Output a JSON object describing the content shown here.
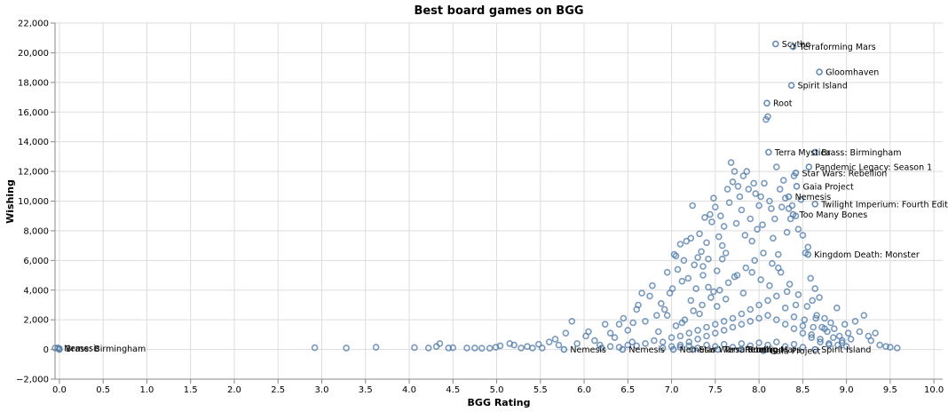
{
  "chart_data": {
    "type": "scatter",
    "title": "Best board games on BGG",
    "xlabel": "BGG Rating",
    "ylabel": "Wishing",
    "xlim": [
      -0.05,
      10.1
    ],
    "ylim": [
      -2000,
      22000
    ],
    "x_ticks": [
      "0.0",
      "0.5",
      "1.0",
      "1.5",
      "2.0",
      "2.5",
      "3.0",
      "3.5",
      "4.0",
      "4.5",
      "5.0",
      "5.5",
      "6.0",
      "6.5",
      "7.0",
      "7.5",
      "8.0",
      "8.5",
      "9.0",
      "9.5",
      "10.0"
    ],
    "y_ticks": [
      "−2,000",
      "0",
      "2,000",
      "4,000",
      "6,000",
      "8,000",
      "10,000",
      "12,000",
      "14,000",
      "16,000",
      "18,000",
      "20,000",
      "22,000"
    ],
    "grid": true,
    "color": "#4c78a8",
    "labeled_points": [
      {
        "label": "Scythe",
        "x": 8.19,
        "y": 20600
      },
      {
        "label": "Terraforming Mars",
        "x": 8.39,
        "y": 20400
      },
      {
        "label": "Gloomhaven",
        "x": 8.69,
        "y": 18700
      },
      {
        "label": "Spirit Island",
        "x": 8.37,
        "y": 17800
      },
      {
        "label": "Root",
        "x": 8.09,
        "y": 16600
      },
      {
        "label": "Terra Mystica",
        "x": 8.11,
        "y": 13300
      },
      {
        "label": "Brass: Birmingham",
        "x": 8.64,
        "y": 13300
      },
      {
        "label": "Pandemic Legacy: Season 1",
        "x": 8.57,
        "y": 12300
      },
      {
        "label": "Star Wars: Rebellion",
        "x": 8.42,
        "y": 11900
      },
      {
        "label": "Gaia Project",
        "x": 8.43,
        "y": 11000
      },
      {
        "label": "Nemesis",
        "x": 8.34,
        "y": 10300
      },
      {
        "label": "Twilight Imperium: Fourth Edition",
        "x": 8.64,
        "y": 9800
      },
      {
        "label": "Too Many Bones",
        "x": 8.39,
        "y": 9100
      },
      {
        "label": "Kingdom Death: Monster",
        "x": 8.56,
        "y": 6400
      },
      {
        "label": "Nemesis",
        "x": -0.02,
        "y": 100
      },
      {
        "label": "Brass: Birmingham",
        "x": 0.0,
        "y": 50
      },
      {
        "label": "Nemesis",
        "x": 5.77,
        "y": 0
      },
      {
        "label": "Nemesis",
        "x": 6.44,
        "y": 0
      },
      {
        "label": "Nemesis",
        "x": 7.02,
        "y": 0
      },
      {
        "label": "Star Wars: Rebellion",
        "x": 7.24,
        "y": 0
      },
      {
        "label": "Terraforming Mars",
        "x": 7.53,
        "y": 0
      },
      {
        "label": "Root",
        "x": 7.8,
        "y": 0
      },
      {
        "label": "Gaia Project",
        "x": 8.05,
        "y": -80
      },
      {
        "label": "Spirit Island",
        "x": 8.64,
        "y": 0
      }
    ],
    "points": [
      [
        -0.05,
        100
      ],
      [
        0.0,
        0
      ],
      [
        2.92,
        120
      ],
      [
        3.28,
        100
      ],
      [
        3.62,
        150
      ],
      [
        4.06,
        130
      ],
      [
        4.22,
        100
      ],
      [
        4.31,
        200
      ],
      [
        4.35,
        400
      ],
      [
        4.45,
        100
      ],
      [
        4.5,
        120
      ],
      [
        4.66,
        100
      ],
      [
        4.75,
        100
      ],
      [
        4.83,
        80
      ],
      [
        4.92,
        80
      ],
      [
        4.99,
        150
      ],
      [
        5.04,
        250
      ],
      [
        5.15,
        400
      ],
      [
        5.2,
        300
      ],
      [
        5.28,
        100
      ],
      [
        5.35,
        200
      ],
      [
        5.41,
        100
      ],
      [
        5.48,
        350
      ],
      [
        5.52,
        100
      ],
      [
        5.6,
        500
      ],
      [
        5.67,
        700
      ],
      [
        5.71,
        300
      ],
      [
        5.79,
        1100
      ],
      [
        5.86,
        1900
      ],
      [
        5.92,
        400
      ],
      [
        6.02,
        900
      ],
      [
        6.05,
        1200
      ],
      [
        6.12,
        600
      ],
      [
        6.18,
        300
      ],
      [
        6.24,
        1700
      ],
      [
        6.3,
        1100
      ],
      [
        6.35,
        800
      ],
      [
        6.4,
        1700
      ],
      [
        6.45,
        2100
      ],
      [
        6.5,
        1300
      ],
      [
        6.56,
        1800
      ],
      [
        6.6,
        2700
      ],
      [
        6.62,
        3000
      ],
      [
        6.66,
        3800
      ],
      [
        6.7,
        1900
      ],
      [
        6.75,
        3600
      ],
      [
        6.78,
        4300
      ],
      [
        6.83,
        2300
      ],
      [
        6.88,
        3100
      ],
      [
        6.92,
        2700
      ],
      [
        6.95,
        5200
      ],
      [
        6.98,
        3800
      ],
      [
        7.01,
        4100
      ],
      [
        7.03,
        6400
      ],
      [
        7.05,
        6300
      ],
      [
        7.07,
        5400
      ],
      [
        7.1,
        7100
      ],
      [
        7.12,
        4600
      ],
      [
        7.14,
        6000
      ],
      [
        7.17,
        7300
      ],
      [
        7.19,
        4800
      ],
      [
        7.22,
        7500
      ],
      [
        7.24,
        9700
      ],
      [
        7.26,
        5700
      ],
      [
        7.28,
        4100
      ],
      [
        7.3,
        6200
      ],
      [
        7.32,
        7800
      ],
      [
        7.34,
        6600
      ],
      [
        7.36,
        5000
      ],
      [
        7.38,
        8900
      ],
      [
        7.4,
        7200
      ],
      [
        7.42,
        6100
      ],
      [
        7.44,
        9100
      ],
      [
        7.46,
        8600
      ],
      [
        7.48,
        10200
      ],
      [
        7.5,
        9600
      ],
      [
        7.52,
        5300
      ],
      [
        7.54,
        7600
      ],
      [
        7.56,
        9000
      ],
      [
        7.58,
        7000
      ],
      [
        7.6,
        8300
      ],
      [
        7.62,
        6500
      ],
      [
        7.64,
        10800
      ],
      [
        7.66,
        9900
      ],
      [
        7.68,
        12600
      ],
      [
        7.7,
        11300
      ],
      [
        7.72,
        12000
      ],
      [
        7.74,
        8500
      ],
      [
        7.76,
        11000
      ],
      [
        7.78,
        10300
      ],
      [
        7.8,
        9400
      ],
      [
        7.82,
        11700
      ],
      [
        7.84,
        7700
      ],
      [
        7.86,
        12000
      ],
      [
        7.88,
        10800
      ],
      [
        7.9,
        8800
      ],
      [
        7.92,
        7300
      ],
      [
        7.94,
        11200
      ],
      [
        7.96,
        10500
      ],
      [
        7.98,
        8100
      ],
      [
        8.0,
        9700
      ],
      [
        8.02,
        10300
      ],
      [
        8.04,
        8400
      ],
      [
        8.06,
        11200
      ],
      [
        8.08,
        15500
      ],
      [
        8.1,
        15700
      ],
      [
        8.12,
        10000
      ],
      [
        8.14,
        9500
      ],
      [
        8.16,
        7500
      ],
      [
        8.18,
        8800
      ],
      [
        8.2,
        12300
      ],
      [
        8.22,
        6400
      ],
      [
        8.24,
        10800
      ],
      [
        8.26,
        9600
      ],
      [
        8.28,
        11400
      ],
      [
        8.3,
        10200
      ],
      [
        8.32,
        7900
      ],
      [
        8.34,
        9500
      ],
      [
        8.36,
        8800
      ],
      [
        8.38,
        9700
      ],
      [
        8.4,
        11700
      ],
      [
        8.42,
        9000
      ],
      [
        8.45,
        8100
      ],
      [
        8.48,
        10100
      ],
      [
        8.5,
        7700
      ],
      [
        8.53,
        6500
      ],
      [
        8.56,
        6900
      ],
      [
        8.59,
        4800
      ],
      [
        8.61,
        3300
      ],
      [
        8.64,
        4100
      ],
      [
        8.66,
        2300
      ],
      [
        8.69,
        3500
      ],
      [
        8.72,
        1500
      ],
      [
        8.75,
        2100
      ],
      [
        8.78,
        1200
      ],
      [
        8.82,
        1800
      ],
      [
        8.86,
        1400
      ],
      [
        8.89,
        2800
      ],
      [
        8.92,
        900
      ],
      [
        8.95,
        600
      ],
      [
        8.98,
        1700
      ],
      [
        9.02,
        1100
      ],
      [
        9.05,
        700
      ],
      [
        9.1,
        1900
      ],
      [
        9.15,
        1200
      ],
      [
        9.2,
        2300
      ],
      [
        9.25,
        900
      ],
      [
        9.28,
        600
      ],
      [
        9.33,
        1100
      ],
      [
        9.38,
        300
      ],
      [
        9.45,
        200
      ],
      [
        9.5,
        150
      ],
      [
        9.58,
        100
      ],
      [
        6.2,
        100
      ],
      [
        6.3,
        200
      ],
      [
        6.4,
        150
      ],
      [
        6.5,
        300
      ],
      [
        6.6,
        250
      ],
      [
        6.7,
        400
      ],
      [
        6.8,
        600
      ],
      [
        6.9,
        500
      ],
      [
        7.0,
        800
      ],
      [
        7.1,
        900
      ],
      [
        7.2,
        1100
      ],
      [
        7.3,
        1300
      ],
      [
        7.4,
        1500
      ],
      [
        7.5,
        1700
      ],
      [
        7.6,
        1900
      ],
      [
        7.7,
        2100
      ],
      [
        7.8,
        2400
      ],
      [
        7.9,
        2700
      ],
      [
        8.0,
        3000
      ],
      [
        8.1,
        3300
      ],
      [
        8.2,
        3600
      ],
      [
        8.3,
        2800
      ],
      [
        8.4,
        2200
      ],
      [
        8.5,
        1600
      ],
      [
        8.6,
        1000
      ],
      [
        8.7,
        700
      ],
      [
        8.8,
        400
      ],
      [
        8.9,
        300
      ],
      [
        9.0,
        200
      ],
      [
        6.55,
        500
      ],
      [
        6.85,
        1200
      ],
      [
        7.05,
        1600
      ],
      [
        7.15,
        2000
      ],
      [
        7.25,
        2600
      ],
      [
        7.35,
        3000
      ],
      [
        7.45,
        3500
      ],
      [
        7.55,
        4000
      ],
      [
        7.65,
        4500
      ],
      [
        7.75,
        5000
      ],
      [
        7.85,
        5500
      ],
      [
        7.95,
        6000
      ],
      [
        8.05,
        6500
      ],
      [
        8.15,
        5800
      ],
      [
        8.25,
        5200
      ],
      [
        8.35,
        4400
      ],
      [
        8.45,
        3700
      ],
      [
        8.55,
        2900
      ],
      [
        8.65,
        2100
      ],
      [
        8.75,
        1400
      ],
      [
        8.85,
        800
      ],
      [
        8.95,
        450
      ],
      [
        7.1,
        300
      ],
      [
        7.2,
        500
      ],
      [
        7.3,
        700
      ],
      [
        7.4,
        900
      ],
      [
        7.5,
        1100
      ],
      [
        7.6,
        1300
      ],
      [
        7.7,
        1500
      ],
      [
        7.8,
        1700
      ],
      [
        7.9,
        1900
      ],
      [
        8.0,
        2100
      ],
      [
        8.1,
        2300
      ],
      [
        8.2,
        2000
      ],
      [
        8.3,
        1700
      ],
      [
        8.4,
        1400
      ],
      [
        8.5,
        1100
      ],
      [
        8.6,
        800
      ],
      [
        8.7,
        500
      ],
      [
        8.8,
        300
      ],
      [
        6.9,
        100
      ],
      [
        7.0,
        200
      ],
      [
        7.1,
        150
      ],
      [
        7.2,
        250
      ],
      [
        7.3,
        100
      ],
      [
        7.4,
        300
      ],
      [
        7.5,
        200
      ],
      [
        7.6,
        350
      ],
      [
        7.7,
        150
      ],
      [
        7.8,
        400
      ],
      [
        7.9,
        250
      ],
      [
        8.0,
        450
      ],
      [
        8.1,
        300
      ],
      [
        8.2,
        500
      ],
      [
        8.3,
        200
      ],
      [
        8.4,
        350
      ],
      [
        8.5,
        150
      ],
      [
        7.36,
        5600
      ],
      [
        7.58,
        6100
      ],
      [
        7.72,
        4900
      ],
      [
        7.92,
        5200
      ],
      [
        8.12,
        4300
      ],
      [
        8.32,
        3900
      ],
      [
        7.62,
        3400
      ],
      [
        7.42,
        4200
      ],
      [
        7.22,
        3300
      ],
      [
        7.82,
        3800
      ],
      [
        8.02,
        4700
      ],
      [
        8.22,
        5500
      ],
      [
        8.42,
        3000
      ],
      [
        7.52,
        2900
      ],
      [
        7.32,
        2400
      ],
      [
        7.12,
        1800
      ],
      [
        8.52,
        2000
      ],
      [
        8.62,
        1500
      ],
      [
        6.95,
        2300
      ],
      [
        7.48,
        3900
      ]
    ]
  }
}
